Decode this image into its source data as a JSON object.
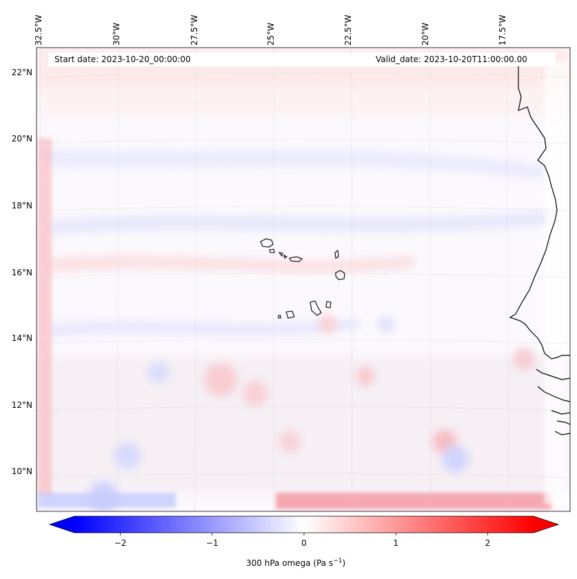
{
  "map": {
    "lon_labels": [
      "32.5°W",
      "30°W",
      "27.5°W",
      "25°W",
      "22.5°W",
      "20°W",
      "17.5°W"
    ],
    "lat_labels": [
      "22°N",
      "20°N",
      "18°N",
      "16°N",
      "14°N",
      "12°N",
      "10°N"
    ],
    "start_date": "Start date: 2023-10-20_00:00:00",
    "valid_date": "Valid_date: 2023-10-20T11:00:00.00"
  },
  "colorbar": {
    "tick_labels": [
      "−2",
      "−1",
      "0",
      "1",
      "2"
    ],
    "tick_values": [
      -2,
      -1,
      0,
      1,
      2
    ],
    "vmin": -2.5,
    "vmax": 2.5,
    "label": "300 hPa omega (Pa s",
    "label_exp": "−1",
    "label_close": ")",
    "colormap": "bwr",
    "low_color": "#0000ff",
    "mid_color": "#ffffff",
    "high_color": "#ff0000"
  }
}
